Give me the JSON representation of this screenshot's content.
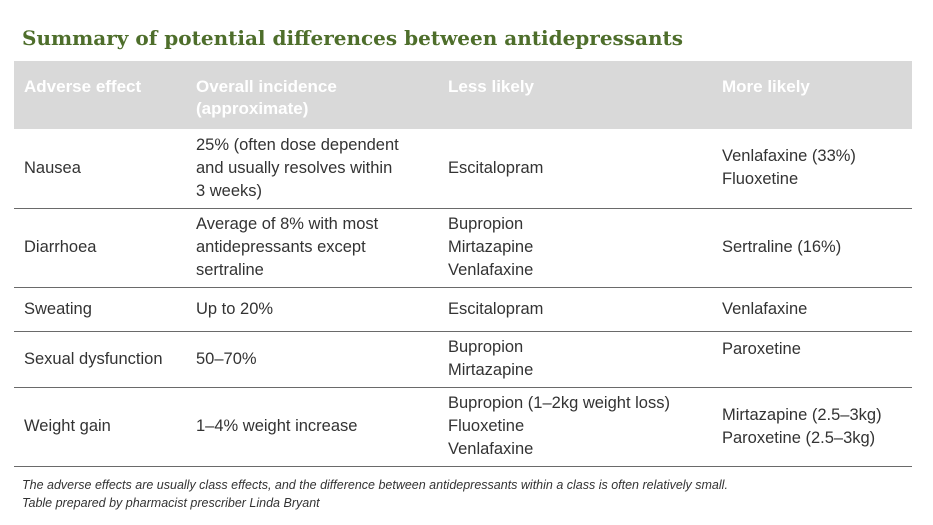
{
  "title": "Summary of potential differences between antidepressants",
  "table": {
    "headers": [
      "Adverse effect",
      "Overall incidence (approximate)",
      "Less likely",
      "More likely"
    ],
    "rows": [
      {
        "effect": "Nausea",
        "incidence": [
          "25% (often dose dependent",
          "and usually resolves within",
          "3 weeks)"
        ],
        "less": [
          "Escitalopram"
        ],
        "more": [
          "Venlafaxine (33%)",
          "Fluoxetine"
        ]
      },
      {
        "effect": "Diarrhoea",
        "incidence": [
          "Average of 8% with most",
          "antidepressants except",
          "sertraline"
        ],
        "less": [
          "Bupropion",
          "Mirtazapine",
          "Venlafaxine"
        ],
        "more": [
          "Sertraline (16%)"
        ]
      },
      {
        "effect": "Sweating",
        "incidence": [
          "Up to 20%"
        ],
        "less": [
          "Escitalopram"
        ],
        "more": [
          "Venlafaxine"
        ]
      },
      {
        "effect": "Sexual dysfunction",
        "incidence": [
          "50–70%"
        ],
        "less": [
          "Bupropion",
          "Mirtazapine"
        ],
        "more": [
          "Paroxetine"
        ]
      },
      {
        "effect": "Weight gain",
        "incidence": [
          "1–4% weight increase"
        ],
        "less": [
          "Bupropion (1–2kg weight loss)",
          "Fluoxetine",
          "Venlafaxine"
        ],
        "more": [
          "Mirtazapine (2.5–3kg)",
          "Paroxetine (2.5–3kg)"
        ]
      }
    ]
  },
  "footnote": {
    "line1": "The adverse effects are usually class effects, and the difference between antidepressants within a class is often relatively small.",
    "line2": "Table prepared by pharmacist prescriber Linda Bryant"
  }
}
